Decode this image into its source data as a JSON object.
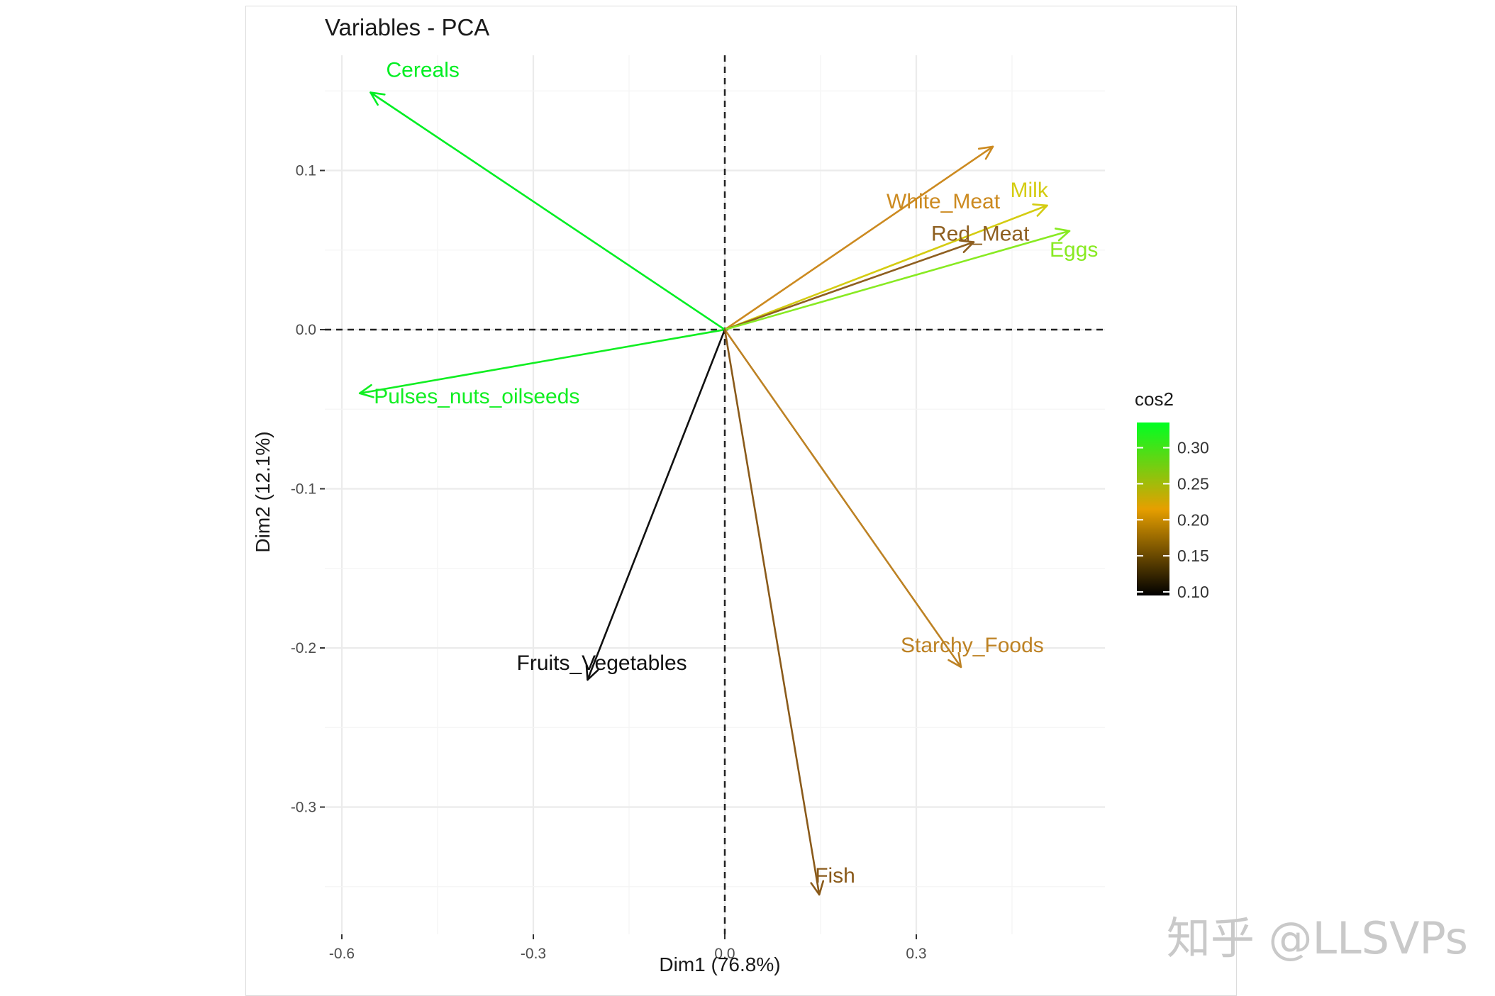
{
  "watermark": "知乎 @LLSVPs",
  "chart_data": {
    "type": "scatter",
    "subtype": "pca-variable-arrows",
    "title": "Variables - PCA",
    "xlabel": "Dim1 (76.8%)",
    "ylabel": "Dim2 (12.1%)",
    "xlim": [
      -0.62,
      0.6
    ],
    "ylim": [
      -0.38,
      0.16
    ],
    "xticks": [
      -0.6,
      -0.3,
      0.0,
      0.3
    ],
    "xtick_labels": [
      "-0.6",
      "-0.3",
      "0.0",
      "0.3"
    ],
    "yticks": [
      0.1,
      0.0,
      -0.1,
      -0.2,
      -0.3
    ],
    "ytick_labels": [
      "0.1",
      "0.0",
      "-0.1",
      "-0.2",
      "-0.3"
    ],
    "grid": true,
    "reference_lines": {
      "x": 0,
      "y": 0,
      "style": "dashed"
    },
    "variables": [
      {
        "name": "Cereals",
        "x": -0.555,
        "y": 0.149,
        "cos2": 0.335,
        "color": "#00ee22"
      },
      {
        "name": "Pulses_nuts_oilseeds",
        "x": -0.572,
        "y": -0.04,
        "cos2": 0.33,
        "color": "#11ee22"
      },
      {
        "name": "White_Meat",
        "x": 0.42,
        "y": 0.115,
        "cos2": 0.2,
        "color": "#cc8a20"
      },
      {
        "name": "Milk",
        "x": 0.505,
        "y": 0.078,
        "cos2": 0.24,
        "color": "#d4cc11"
      },
      {
        "name": "Red_Meat",
        "x": 0.39,
        "y": 0.055,
        "cos2": 0.17,
        "color": "#8e5f20"
      },
      {
        "name": "Eggs",
        "x": 0.54,
        "y": 0.062,
        "cos2": 0.28,
        "color": "#88ea22"
      },
      {
        "name": "Fruits_Vegetables",
        "x": -0.215,
        "y": -0.22,
        "cos2": 0.1,
        "color": "#111111"
      },
      {
        "name": "Starchy_Foods",
        "x": 0.37,
        "y": -0.212,
        "cos2": 0.19,
        "color": "#bd8224"
      },
      {
        "name": "Fish",
        "x": 0.148,
        "y": -0.355,
        "cos2": 0.16,
        "color": "#8a5a1a"
      }
    ],
    "legend": {
      "title": "cos2",
      "placement": "right",
      "ticks": [
        "0.30",
        "0.25",
        "0.20",
        "0.15",
        "0.10"
      ],
      "tick_values": [
        0.3,
        0.25,
        0.2,
        0.15,
        0.1
      ],
      "range": [
        0.095,
        0.335
      ],
      "gradient_colors": [
        "#000000",
        "#e69f00",
        "#00ff22"
      ]
    }
  }
}
